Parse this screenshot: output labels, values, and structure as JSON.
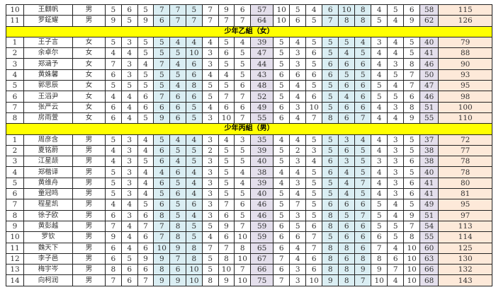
{
  "colors": {
    "hole_highlight": "#daeef3",
    "subtotal": "#e4dfec",
    "total": "#fde9d9",
    "group_header": "#ffff00"
  },
  "sections": [
    {
      "title": "",
      "rows": [
        {
          "no": "10",
          "name": "王麒帆",
          "gender": "男",
          "front": [
            5,
            6,
            5,
            7,
            7,
            5,
            7,
            9,
            6
          ],
          "out": 57,
          "back": [
            10,
            5,
            4,
            6,
            10,
            8,
            4,
            5,
            6
          ],
          "in": 58,
          "total": 115
        },
        {
          "no": "11",
          "name": "罗鉦耀",
          "gender": "男",
          "front": [
            9,
            5,
            9,
            6,
            7,
            7,
            7,
            7,
            7
          ],
          "out": 64,
          "back": [
            10,
            6,
            5,
            7,
            8,
            8,
            5,
            4,
            9
          ],
          "in": 62,
          "total": 126
        }
      ]
    },
    {
      "title": "少年乙組（女）",
      "rows": [
        {
          "no": "1",
          "name": "王子言",
          "gender": "女",
          "front": [
            5,
            3,
            5,
            5,
            4,
            4,
            4,
            5,
            4
          ],
          "out": 39,
          "back": [
            5,
            4,
            5,
            5,
            5,
            4,
            3,
            4,
            5
          ],
          "in": 40,
          "total": 79
        },
        {
          "no": "2",
          "name": "余卓尔",
          "gender": "女",
          "front": [
            4,
            4,
            5,
            5,
            5,
            10,
            3,
            6,
            5
          ],
          "out": 47,
          "back": [
            5,
            3,
            6,
            5,
            4,
            5,
            4,
            4,
            5
          ],
          "in": 41,
          "total": 88
        },
        {
          "no": "3",
          "name": "郑涵予",
          "gender": "女",
          "front": [
            7,
            3,
            4,
            7,
            4,
            6,
            3,
            5,
            5
          ],
          "out": 44,
          "back": [
            5,
            3,
            5,
            6,
            6,
            6,
            4,
            3,
            8
          ],
          "in": 46,
          "total": 90
        },
        {
          "no": "4",
          "name": "黄姝馨",
          "gender": "女",
          "front": [
            6,
            3,
            5,
            5,
            5,
            6,
            4,
            4,
            5
          ],
          "out": 43,
          "back": [
            6,
            6,
            6,
            6,
            5,
            5,
            4,
            5,
            7
          ],
          "in": 50,
          "total": 93
        },
        {
          "no": "5",
          "name": "郭思辰",
          "gender": "女",
          "front": [
            5,
            5,
            5,
            5,
            4,
            8,
            5,
            5,
            6
          ],
          "out": 48,
          "back": [
            5,
            4,
            5,
            5,
            6,
            6,
            5,
            4,
            7
          ],
          "in": 47,
          "total": 95
        },
        {
          "no": "6",
          "name": "王滔尹",
          "gender": "女",
          "front": [
            4,
            4,
            6,
            7,
            6,
            6,
            5,
            7,
            7
          ],
          "out": 52,
          "back": [
            5,
            4,
            6,
            5,
            4,
            6,
            5,
            5,
            6
          ],
          "in": 46,
          "total": 98
        },
        {
          "no": "7",
          "name": "张严云",
          "gender": "女",
          "front": [
            6,
            4,
            6,
            6,
            6,
            5,
            4,
            6,
            6
          ],
          "out": 49,
          "back": [
            6,
            3,
            10,
            5,
            6,
            6,
            4,
            3,
            8
          ],
          "in": 51,
          "total": 100
        },
        {
          "no": "8",
          "name": "房雨萱",
          "gender": "女",
          "front": [
            6,
            4,
            5,
            9,
            6,
            5,
            3,
            10,
            7
          ],
          "out": 55,
          "back": [
            6,
            4,
            7,
            8,
            6,
            7,
            4,
            4,
            9
          ],
          "in": 55,
          "total": 110
        }
      ]
    },
    {
      "title": "少年丙組（男）",
      "rows": [
        {
          "no": "1",
          "name": "周彦含",
          "gender": "男",
          "front": [
            5,
            3,
            4,
            5,
            4,
            4,
            3,
            4,
            3
          ],
          "out": 35,
          "back": [
            4,
            4,
            5,
            5,
            3,
            4,
            4,
            3,
            5
          ],
          "in": 37,
          "total": 72
        },
        {
          "no": "2",
          "name": "夏铭蔚",
          "gender": "男",
          "front": [
            4,
            3,
            4,
            6,
            5,
            5,
            2,
            5,
            5
          ],
          "out": 39,
          "back": [
            5,
            2,
            3,
            5,
            6,
            5,
            4,
            3,
            5
          ],
          "in": 38,
          "total": 77
        },
        {
          "no": "3",
          "name": "江星颉",
          "gender": "男",
          "front": [
            4,
            3,
            5,
            6,
            4,
            5,
            3,
            5,
            5
          ],
          "out": 40,
          "back": [
            5,
            3,
            4,
            6,
            3,
            5,
            3,
            3,
            6
          ],
          "in": 38,
          "total": 78
        },
        {
          "no": "4",
          "name": "郑楷译",
          "gender": "男",
          "front": [
            5,
            3,
            4,
            4,
            6,
            4,
            3,
            5,
            4
          ],
          "out": 38,
          "back": [
            4,
            4,
            5,
            6,
            4,
            5,
            4,
            3,
            5
          ],
          "in": 40,
          "total": 78
        },
        {
          "no": "5",
          "name": "黄维舟",
          "gender": "男",
          "front": [
            5,
            3,
            4,
            6,
            5,
            4,
            3,
            5,
            4
          ],
          "out": 39,
          "back": [
            4,
            3,
            5,
            5,
            4,
            7,
            4,
            3,
            6
          ],
          "in": 41,
          "total": 80
        },
        {
          "no": "6",
          "name": "童冠鸣",
          "gender": "男",
          "front": [
            5,
            3,
            4,
            5,
            6,
            4,
            3,
            5,
            5
          ],
          "out": 40,
          "back": [
            5,
            4,
            5,
            5,
            4,
            5,
            4,
            3,
            6
          ],
          "in": 41,
          "total": 81
        },
        {
          "no": "7",
          "name": "程星凯",
          "gender": "男",
          "front": [
            4,
            4,
            5,
            6,
            5,
            6,
            3,
            7,
            6
          ],
          "out": 46,
          "back": [
            5,
            7,
            5,
            6,
            6,
            6,
            5,
            4,
            5
          ],
          "in": 49,
          "total": 95
        },
        {
          "no": "8",
          "name": "徐子欧",
          "gender": "男",
          "front": [
            6,
            3,
            6,
            8,
            5,
            4,
            3,
            6,
            5
          ],
          "out": 46,
          "back": [
            5,
            3,
            5,
            8,
            5,
            7,
            5,
            4,
            9
          ],
          "in": 51,
          "total": 97
        },
        {
          "no": "9",
          "name": "黄彭越",
          "gender": "男",
          "front": [
            7,
            4,
            7,
            7,
            8,
            5,
            5,
            9,
            7
          ],
          "out": 59,
          "back": [
            6,
            5,
            6,
            8,
            6,
            6,
            5,
            5,
            7
          ],
          "in": 54,
          "total": 113
        },
        {
          "no": "10",
          "name": "罗钦",
          "gender": "男",
          "front": [
            9,
            4,
            6,
            7,
            8,
            5,
            4,
            6,
            10
          ],
          "out": 59,
          "back": [
            6,
            6,
            7,
            5,
            6,
            6,
            6,
            5,
            8
          ],
          "in": 55,
          "total": 114
        },
        {
          "no": "11",
          "name": "魏天下",
          "gender": "男",
          "front": [
            6,
            4,
            6,
            10,
            9,
            8,
            7,
            7,
            8
          ],
          "out": 65,
          "back": [
            6,
            4,
            7,
            8,
            8,
            6,
            7,
            4,
            10
          ],
          "in": 60,
          "total": 125
        },
        {
          "no": "12",
          "name": "李子邑",
          "gender": "男",
          "front": [
            6,
            5,
            9,
            9,
            7,
            8,
            5,
            8,
            10
          ],
          "out": 67,
          "back": [
            7,
            4,
            6,
            8,
            6,
            8,
            8,
            6,
            10
          ],
          "in": 63,
          "total": 130
        },
        {
          "no": "13",
          "name": "梅宇岑",
          "gender": "男",
          "front": [
            8,
            6,
            6,
            8,
            6,
            10,
            5,
            10,
            7
          ],
          "out": 66,
          "back": [
            6,
            3,
            6,
            8,
            8,
            9,
            9,
            7,
            10
          ],
          "in": 66,
          "total": 132
        },
        {
          "no": "14",
          "name": "向柯润",
          "gender": "男",
          "front": [
            7,
            6,
            7,
            9,
            9,
            10,
            8,
            9,
            10
          ],
          "out": 75,
          "back": [
            7,
            3,
            10,
            9,
            8,
            7,
            10,
            4,
            10
          ],
          "in": 68,
          "total": 143
        }
      ]
    }
  ]
}
